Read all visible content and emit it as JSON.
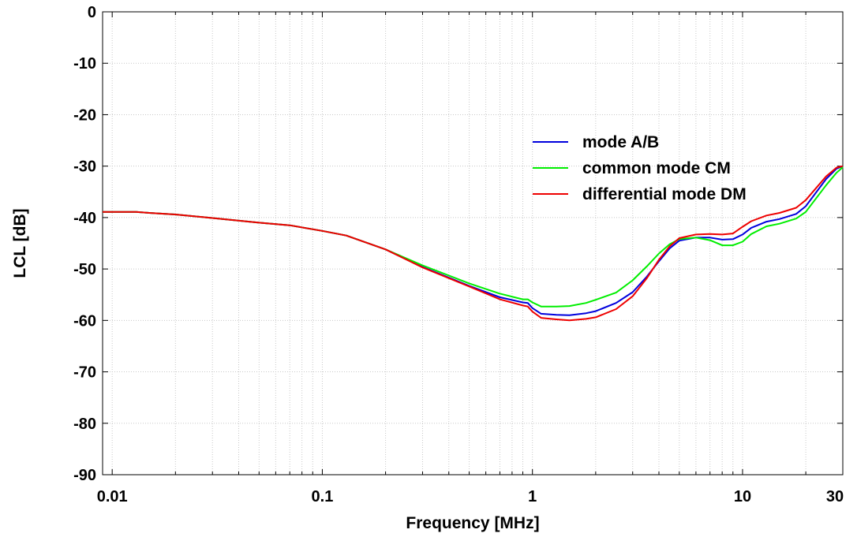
{
  "chart_data": {
    "type": "line",
    "xlabel": "Frequency [MHz]",
    "ylabel": "LCL [dB]",
    "xscale": "log",
    "xlim": [
      0.009,
      30
    ],
    "ylim": [
      -90,
      0
    ],
    "grid": true,
    "legend_position": "top-right",
    "x_ticks": [
      {
        "value": 0.01,
        "label": "0.01"
      },
      {
        "value": 0.1,
        "label": "0.1"
      },
      {
        "value": 1,
        "label": "1"
      },
      {
        "value": 10,
        "label": "10"
      },
      {
        "value": 30,
        "label": "30"
      }
    ],
    "y_ticks": [
      {
        "value": 0,
        "label": "0"
      },
      {
        "value": -10,
        "label": "-10"
      },
      {
        "value": -20,
        "label": "-20"
      },
      {
        "value": -30,
        "label": "-30"
      },
      {
        "value": -40,
        "label": "-40"
      },
      {
        "value": -50,
        "label": "-50"
      },
      {
        "value": -60,
        "label": "-60"
      },
      {
        "value": -70,
        "label": "-70"
      },
      {
        "value": -80,
        "label": "-80"
      },
      {
        "value": -90,
        "label": "-90"
      }
    ],
    "series": [
      {
        "name": "mode A/B",
        "color": "#0000dd",
        "points": [
          [
            0.009,
            -38.9
          ],
          [
            0.013,
            -38.9
          ],
          [
            0.015,
            -39.1
          ],
          [
            0.02,
            -39.4
          ],
          [
            0.03,
            -40.1
          ],
          [
            0.05,
            -41.0
          ],
          [
            0.07,
            -41.5
          ],
          [
            0.1,
            -42.6
          ],
          [
            0.13,
            -43.5
          ],
          [
            0.2,
            -46.2
          ],
          [
            0.3,
            -49.6
          ],
          [
            0.5,
            -53.3
          ],
          [
            0.7,
            -55.5
          ],
          [
            0.9,
            -56.5
          ],
          [
            0.95,
            -56.6
          ],
          [
            1.0,
            -57.6
          ],
          [
            1.1,
            -58.7
          ],
          [
            1.3,
            -58.9
          ],
          [
            1.5,
            -59.0
          ],
          [
            1.8,
            -58.6
          ],
          [
            2.0,
            -58.2
          ],
          [
            2.5,
            -56.6
          ],
          [
            3.0,
            -54.5
          ],
          [
            3.5,
            -51.5
          ],
          [
            4.0,
            -48.5
          ],
          [
            4.5,
            -46.0
          ],
          [
            5.0,
            -44.5
          ],
          [
            6.0,
            -43.9
          ],
          [
            7.0,
            -43.9
          ],
          [
            8.0,
            -44.3
          ],
          [
            9.0,
            -44.2
          ],
          [
            10,
            -43.3
          ],
          [
            11,
            -42.0
          ],
          [
            13,
            -40.8
          ],
          [
            15,
            -40.3
          ],
          [
            18,
            -39.3
          ],
          [
            20,
            -37.8
          ],
          [
            25,
            -32.5
          ],
          [
            28,
            -30.5
          ],
          [
            30,
            -30.0
          ]
        ]
      },
      {
        "name": "common mode CM",
        "color": "#00ee00",
        "points": [
          [
            0.009,
            -38.9
          ],
          [
            0.013,
            -38.9
          ],
          [
            0.015,
            -39.1
          ],
          [
            0.02,
            -39.4
          ],
          [
            0.03,
            -40.1
          ],
          [
            0.05,
            -41.0
          ],
          [
            0.07,
            -41.5
          ],
          [
            0.1,
            -42.6
          ],
          [
            0.13,
            -43.5
          ],
          [
            0.2,
            -46.2
          ],
          [
            0.3,
            -49.3
          ],
          [
            0.5,
            -52.8
          ],
          [
            0.7,
            -54.8
          ],
          [
            0.9,
            -55.9
          ],
          [
            0.95,
            -55.9
          ],
          [
            1.0,
            -56.5
          ],
          [
            1.1,
            -57.3
          ],
          [
            1.3,
            -57.3
          ],
          [
            1.5,
            -57.2
          ],
          [
            1.8,
            -56.6
          ],
          [
            2.0,
            -56.0
          ],
          [
            2.5,
            -54.6
          ],
          [
            3.0,
            -52.2
          ],
          [
            3.5,
            -49.5
          ],
          [
            4.0,
            -47.0
          ],
          [
            4.5,
            -45.2
          ],
          [
            5.0,
            -44.2
          ],
          [
            6.0,
            -43.9
          ],
          [
            7.0,
            -44.4
          ],
          [
            8.0,
            -45.4
          ],
          [
            9.0,
            -45.4
          ],
          [
            10,
            -44.7
          ],
          [
            11,
            -43.2
          ],
          [
            13,
            -41.7
          ],
          [
            15,
            -41.2
          ],
          [
            18,
            -40.2
          ],
          [
            20,
            -38.9
          ],
          [
            25,
            -33.7
          ],
          [
            28,
            -31.3
          ],
          [
            30,
            -30.2
          ]
        ]
      },
      {
        "name": "differential mode DM",
        "color": "#ee0000",
        "points": [
          [
            0.009,
            -38.9
          ],
          [
            0.013,
            -38.9
          ],
          [
            0.015,
            -39.1
          ],
          [
            0.02,
            -39.4
          ],
          [
            0.03,
            -40.1
          ],
          [
            0.05,
            -41.0
          ],
          [
            0.07,
            -41.5
          ],
          [
            0.1,
            -42.6
          ],
          [
            0.13,
            -43.5
          ],
          [
            0.2,
            -46.2
          ],
          [
            0.3,
            -49.7
          ],
          [
            0.5,
            -53.4
          ],
          [
            0.7,
            -55.9
          ],
          [
            0.9,
            -57.1
          ],
          [
            0.95,
            -57.3
          ],
          [
            1.0,
            -58.3
          ],
          [
            1.1,
            -59.5
          ],
          [
            1.3,
            -59.8
          ],
          [
            1.5,
            -60.0
          ],
          [
            1.8,
            -59.7
          ],
          [
            2.0,
            -59.4
          ],
          [
            2.5,
            -57.8
          ],
          [
            3.0,
            -55.3
          ],
          [
            3.5,
            -51.8
          ],
          [
            4.0,
            -48.2
          ],
          [
            4.5,
            -45.6
          ],
          [
            5.0,
            -44.0
          ],
          [
            6.0,
            -43.3
          ],
          [
            7.0,
            -43.2
          ],
          [
            8.0,
            -43.3
          ],
          [
            9.0,
            -43.1
          ],
          [
            10,
            -41.8
          ],
          [
            11,
            -40.7
          ],
          [
            13,
            -39.6
          ],
          [
            15,
            -39.1
          ],
          [
            18,
            -38.1
          ],
          [
            20,
            -36.6
          ],
          [
            25,
            -32.0
          ],
          [
            28,
            -30.3
          ],
          [
            30,
            -30.0
          ]
        ]
      }
    ]
  }
}
